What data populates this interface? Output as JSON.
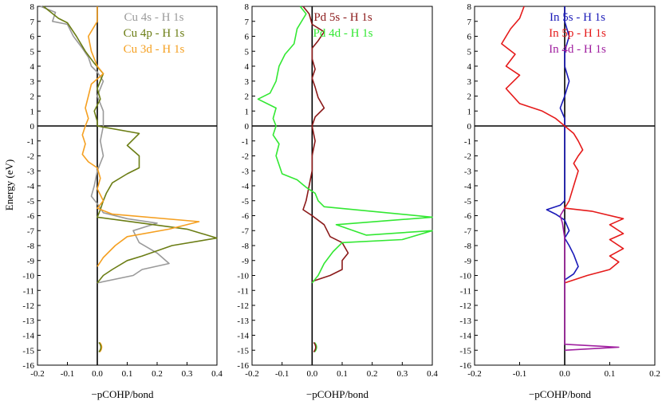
{
  "figure": {
    "ylabel": "Energy (eV)"
  },
  "chart_data": [
    {
      "type": "line",
      "panel": "left",
      "xlabel": "−pCOHP/bond",
      "ylabel": "Energy (eV)",
      "xlim": [
        -0.2,
        0.4
      ],
      "ylim": [
        -16,
        8
      ],
      "xticks": [
        -0.2,
        -0.1,
        0.0,
        0.1,
        0.2,
        0.3,
        0.4
      ],
      "xtick_labels": [
        "-0.2",
        "-0.1",
        "0.0",
        "0.1",
        "0.2",
        "0.3",
        "0.4"
      ],
      "yticks": [
        8,
        7,
        6,
        5,
        4,
        3,
        2,
        1,
        0,
        -1,
        -2,
        -3,
        -4,
        -5,
        -6,
        -7,
        -8,
        -9,
        -10,
        -11,
        -12,
        -13,
        -14,
        -15,
        -16
      ],
      "ytick_labels": [
        "8",
        "7",
        "6",
        "5",
        "4",
        "3",
        "2",
        "1",
        "0",
        "-1",
        "-2",
        "-3",
        "-4",
        "-5",
        "-6",
        "-7",
        "-8",
        "-9",
        "-10",
        "-11",
        "-12",
        "-13",
        "-14",
        "-15",
        "-16"
      ],
      "legend_position": "top-right",
      "series": [
        {
          "name": "Cu 4s - H 1s",
          "color": "#9a9a9a",
          "points": [
            [
              -0.19,
              8
            ],
            [
              -0.14,
              7.6
            ],
            [
              -0.15,
              7.0
            ],
            [
              -0.1,
              6.8
            ],
            [
              -0.08,
              6.0
            ],
            [
              -0.05,
              5.2
            ],
            [
              -0.03,
              4.6
            ],
            [
              -0.02,
              4.0
            ],
            [
              0.0,
              3.6
            ],
            [
              0.02,
              3.0
            ],
            [
              0.0,
              2.0
            ],
            [
              0.02,
              1.0
            ],
            [
              0.02,
              0.4
            ],
            [
              0.02,
              0
            ],
            [
              0.01,
              -1.0
            ],
            [
              0.02,
              -2.0
            ],
            [
              0.0,
              -3.0
            ],
            [
              -0.01,
              -4.0
            ],
            [
              -0.02,
              -4.7
            ],
            [
              0.0,
              -5.2
            ],
            [
              0.02,
              -5.8
            ],
            [
              0.1,
              -6.2
            ],
            [
              0.2,
              -6.5
            ],
            [
              0.12,
              -7.0
            ],
            [
              0.14,
              -7.8
            ],
            [
              0.2,
              -8.5
            ],
            [
              0.24,
              -9.2
            ],
            [
              0.15,
              -9.6
            ],
            [
              0.12,
              -10.0
            ],
            [
              0.0,
              -10.5
            ]
          ]
        },
        {
          "name": "Cu 4p - H 1s",
          "color": "#6b7d14",
          "points": [
            [
              -0.18,
              8
            ],
            [
              -0.13,
              7.2
            ],
            [
              -0.1,
              6.9
            ],
            [
              -0.07,
              6.0
            ],
            [
              -0.04,
              5.0
            ],
            [
              -0.01,
              4.2
            ],
            [
              0.02,
              3.5
            ],
            [
              0.0,
              2.5
            ],
            [
              0.01,
              1.8
            ],
            [
              -0.01,
              1.0
            ],
            [
              0.0,
              0.3
            ],
            [
              0.0,
              0
            ],
            [
              0.14,
              -0.5
            ],
            [
              0.1,
              -1.3
            ],
            [
              0.14,
              -2.0
            ],
            [
              0.14,
              -2.8
            ],
            [
              0.1,
              -3.2
            ],
            [
              0.05,
              -3.8
            ],
            [
              0.03,
              -4.5
            ],
            [
              0.02,
              -5.0
            ],
            [
              0.01,
              -5.6
            ],
            [
              0.0,
              -6.1
            ],
            [
              0.3,
              -6.9
            ],
            [
              0.4,
              -7.5
            ],
            [
              0.25,
              -8.0
            ],
            [
              0.15,
              -8.7
            ],
            [
              0.1,
              -9.0
            ],
            [
              0.05,
              -9.6
            ],
            [
              0.02,
              -10.0
            ],
            [
              0.0,
              -10.5
            ]
          ]
        },
        {
          "name": "Cu 3d - H 1s",
          "color": "#f5a021",
          "points": [
            [
              0.0,
              8
            ],
            [
              0.0,
              7.0
            ],
            [
              -0.03,
              6.0
            ],
            [
              -0.02,
              5.0
            ],
            [
              0.0,
              4.0
            ],
            [
              0.02,
              3.5
            ],
            [
              -0.02,
              2.8
            ],
            [
              -0.03,
              2.0
            ],
            [
              -0.04,
              1.2
            ],
            [
              -0.03,
              0.5
            ],
            [
              -0.04,
              0
            ],
            [
              -0.05,
              -0.6
            ],
            [
              -0.04,
              -1.2
            ],
            [
              -0.05,
              -1.9
            ],
            [
              -0.03,
              -2.4
            ],
            [
              0.0,
              -2.8
            ],
            [
              0.01,
              -3.5
            ],
            [
              0.0,
              -4.2
            ],
            [
              0.02,
              -5.0
            ],
            [
              0.0,
              -5.5
            ],
            [
              0.05,
              -5.9
            ],
            [
              0.34,
              -6.4
            ],
            [
              0.24,
              -6.9
            ],
            [
              0.1,
              -7.4
            ],
            [
              0.06,
              -8.0
            ],
            [
              0.02,
              -8.8
            ],
            [
              0.0,
              -9.4
            ]
          ]
        }
      ],
      "extra_markers": [
        {
          "y": -14.8,
          "colors": [
            "#f5a021",
            "#6b7d14"
          ]
        }
      ]
    },
    {
      "type": "line",
      "panel": "middle",
      "xlabel": "−pCOHP/bond",
      "ylabel": "",
      "xlim": [
        -0.2,
        0.4
      ],
      "ylim": [
        -16,
        8
      ],
      "xticks": [
        -0.2,
        -0.1,
        0.0,
        0.1,
        0.2,
        0.3,
        0.4
      ],
      "xtick_labels": [
        "-0.2",
        "-0.1",
        "0.0",
        "0.1",
        "0.2",
        "0.3",
        "0.4"
      ],
      "yticks": [
        8,
        7,
        6,
        5,
        4,
        3,
        2,
        1,
        0,
        -1,
        -2,
        -3,
        -4,
        -5,
        -6,
        -7,
        -8,
        -9,
        -10,
        -11,
        -12,
        -13,
        -14,
        -15,
        -16
      ],
      "ytick_labels": [
        "8",
        "7",
        "6",
        "5",
        "4",
        "3",
        "2",
        "1",
        "0",
        "-1",
        "-2",
        "-3",
        "-4",
        "-5",
        "-6",
        "-7",
        "-8",
        "-9",
        "-10",
        "-11",
        "-12",
        "-13",
        "-14",
        "-15",
        "-16"
      ],
      "legend_position": "top-right",
      "series": [
        {
          "name": "Pd 5s - H 1s",
          "color": "#8b1a1a",
          "points": [
            [
              -0.03,
              8
            ],
            [
              -0.01,
              7.5
            ],
            [
              0.0,
              6.8
            ],
            [
              0.04,
              6.3
            ],
            [
              0.02,
              5.7
            ],
            [
              0.0,
              5.2
            ],
            [
              0.0,
              4.5
            ],
            [
              0.01,
              3.8
            ],
            [
              0.0,
              3.2
            ],
            [
              0.01,
              2.6
            ],
            [
              0.02,
              1.9
            ],
            [
              0.04,
              1.2
            ],
            [
              0.01,
              0.6
            ],
            [
              0.0,
              0
            ],
            [
              0.01,
              -1.0
            ],
            [
              0.0,
              -2.0
            ],
            [
              0.0,
              -3.0
            ],
            [
              -0.01,
              -4.0
            ],
            [
              -0.02,
              -5.0
            ],
            [
              -0.03,
              -5.6
            ],
            [
              0.0,
              -6.0
            ],
            [
              0.04,
              -6.6
            ],
            [
              0.06,
              -7.4
            ],
            [
              0.1,
              -7.8
            ],
            [
              0.12,
              -8.5
            ],
            [
              0.1,
              -9.0
            ],
            [
              0.1,
              -9.6
            ],
            [
              0.06,
              -10.0
            ],
            [
              0.0,
              -10.4
            ]
          ]
        },
        {
          "name": "Pd 4d - H 1s",
          "color": "#33e833",
          "points": [
            [
              -0.04,
              8
            ],
            [
              -0.02,
              7.5
            ],
            [
              -0.05,
              6.5
            ],
            [
              -0.06,
              5.5
            ],
            [
              -0.09,
              4.8
            ],
            [
              -0.11,
              4.0
            ],
            [
              -0.12,
              3.0
            ],
            [
              -0.14,
              2.2
            ],
            [
              -0.18,
              1.8
            ],
            [
              -0.12,
              1.2
            ],
            [
              -0.13,
              0.5
            ],
            [
              -0.12,
              0
            ],
            [
              -0.13,
              -0.6
            ],
            [
              -0.11,
              -1.2
            ],
            [
              -0.12,
              -2.0
            ],
            [
              -0.11,
              -2.6
            ],
            [
              -0.1,
              -3.2
            ],
            [
              -0.05,
              -3.6
            ],
            [
              -0.02,
              -4.1
            ],
            [
              0.01,
              -4.5
            ],
            [
              0.02,
              -5.0
            ],
            [
              0.04,
              -5.4
            ],
            [
              0.4,
              -6.1
            ],
            [
              0.08,
              -6.6
            ],
            [
              0.18,
              -7.3
            ],
            [
              0.4,
              -7.0
            ],
            [
              0.3,
              -7.6
            ],
            [
              0.1,
              -7.8
            ],
            [
              0.07,
              -8.4
            ],
            [
              0.04,
              -9.2
            ],
            [
              0.02,
              -10.0
            ],
            [
              0.0,
              -10.5
            ]
          ]
        }
      ],
      "extra_markers": [
        {
          "y": -14.8,
          "colors": [
            "#33e833",
            "#8b1a1a"
          ]
        }
      ]
    },
    {
      "type": "line",
      "panel": "right",
      "xlabel": "−pCOHP/bond",
      "ylabel": "",
      "xlim": [
        -0.2,
        0.2
      ],
      "ylim": [
        -16,
        8
      ],
      "xticks": [
        -0.2,
        -0.1,
        0.0,
        0.1,
        0.2
      ],
      "xtick_labels": [
        "-0.2",
        "-0.1",
        "0.0",
        "0.1",
        "0.2"
      ],
      "yticks": [
        8,
        7,
        6,
        5,
        4,
        3,
        2,
        1,
        0,
        -1,
        -2,
        -3,
        -4,
        -5,
        -6,
        -7,
        -8,
        -9,
        -10,
        -11,
        -12,
        -13,
        -14,
        -15,
        -16
      ],
      "ytick_labels": [
        "8",
        "7",
        "6",
        "5",
        "4",
        "3",
        "2",
        "1",
        "0",
        "-1",
        "-2",
        "-3",
        "-4",
        "-5",
        "-6",
        "-7",
        "-8",
        "-9",
        "-10",
        "-11",
        "-12",
        "-13",
        "-14",
        "-15",
        "-16"
      ],
      "legend_position": "top-right",
      "series": [
        {
          "name": "In 5s - H 1s",
          "color": "#1a1ab8",
          "points": [
            [
              0.0,
              8
            ],
            [
              0.0,
              7.0
            ],
            [
              0.01,
              6.0
            ],
            [
              0.0,
              5.0
            ],
            [
              0.0,
              4.0
            ],
            [
              0.01,
              3.0
            ],
            [
              0.0,
              2.0
            ],
            [
              -0.01,
              1.2
            ],
            [
              0.0,
              0.5
            ],
            [
              0.0,
              0
            ],
            [
              0.0,
              -1.0
            ],
            [
              0.0,
              -2.0
            ],
            [
              0.0,
              -3.0
            ],
            [
              0.0,
              -4.0
            ],
            [
              0.0,
              -5.0
            ],
            [
              -0.01,
              -5.3
            ],
            [
              -0.04,
              -5.6
            ],
            [
              -0.02,
              -5.9
            ],
            [
              0.0,
              -6.3
            ],
            [
              0.01,
              -7.0
            ],
            [
              0.0,
              -7.5
            ],
            [
              0.01,
              -8.0
            ],
            [
              0.02,
              -8.6
            ],
            [
              0.03,
              -9.4
            ],
            [
              0.02,
              -9.9
            ],
            [
              0.0,
              -10.3
            ]
          ]
        },
        {
          "name": "In 5p - H 1s",
          "color": "#e51a1a",
          "points": [
            [
              -0.09,
              8
            ],
            [
              -0.1,
              7.2
            ],
            [
              -0.12,
              6.5
            ],
            [
              -0.14,
              5.5
            ],
            [
              -0.11,
              4.8
            ],
            [
              -0.13,
              4.0
            ],
            [
              -0.1,
              3.4
            ],
            [
              -0.13,
              2.5
            ],
            [
              -0.1,
              1.5
            ],
            [
              -0.05,
              1.0
            ],
            [
              -0.02,
              0.5
            ],
            [
              0.0,
              0
            ],
            [
              0.02,
              -0.5
            ],
            [
              0.03,
              -1.0
            ],
            [
              0.04,
              -1.6
            ],
            [
              0.03,
              -2.0
            ],
            [
              0.02,
              -2.5
            ],
            [
              0.03,
              -3.0
            ],
            [
              0.02,
              -4.0
            ],
            [
              0.01,
              -5.0
            ],
            [
              0.0,
              -5.5
            ],
            [
              0.06,
              -5.7
            ],
            [
              0.13,
              -6.2
            ],
            [
              0.1,
              -6.6
            ],
            [
              0.13,
              -7.2
            ],
            [
              0.1,
              -7.6
            ],
            [
              0.13,
              -8.2
            ],
            [
              0.1,
              -8.7
            ],
            [
              0.12,
              -9.1
            ],
            [
              0.1,
              -9.6
            ],
            [
              0.05,
              -10.0
            ],
            [
              0.0,
              -10.5
            ]
          ]
        },
        {
          "name": "In 4d - H 1s",
          "color": "#a020a0",
          "points": [
            [
              0.0,
              -5.5
            ],
            [
              -0.01,
              -6.0
            ],
            [
              -0.005,
              -6.5
            ],
            [
              0.0,
              -7.5
            ],
            [
              0.0,
              -10.0
            ],
            [
              0.0,
              -14.6
            ],
            [
              0.12,
              -14.8
            ],
            [
              0.0,
              -15.0
            ]
          ]
        }
      ]
    }
  ]
}
